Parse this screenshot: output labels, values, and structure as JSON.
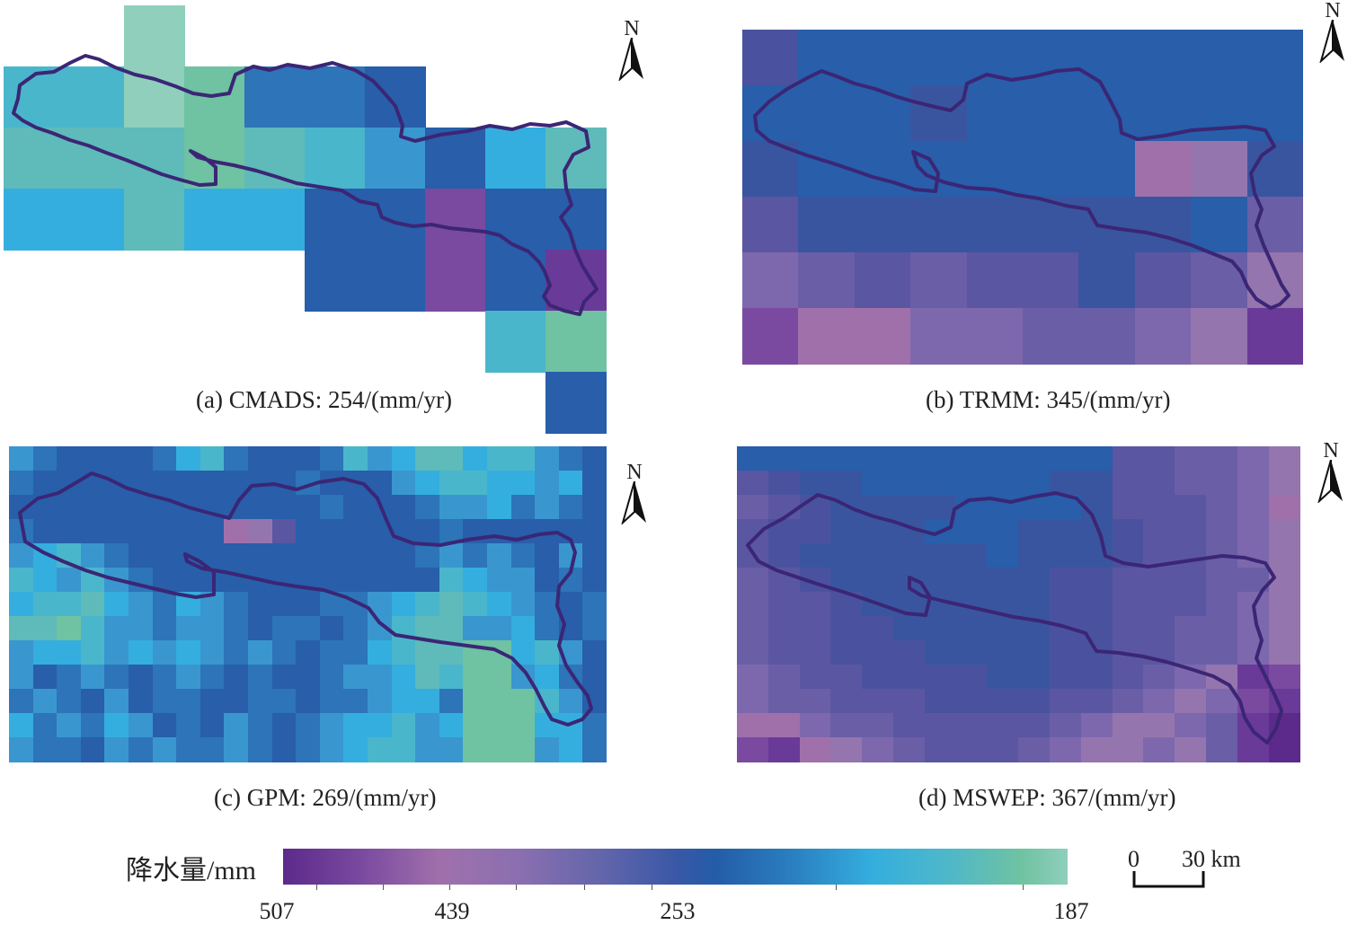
{
  "panels": [
    {
      "id": "a",
      "caption": "(a) CMADS: 254/(mm/yr)",
      "north": "N"
    },
    {
      "id": "b",
      "caption": "(b) TRMM: 345/(mm/yr)",
      "north": "N"
    },
    {
      "id": "c",
      "caption": "(c) GPM: 269/(mm/yr)",
      "north": "N"
    },
    {
      "id": "d",
      "caption": "(d) MSWEP: 367/(mm/yr)",
      "north": "N"
    }
  ],
  "legend": {
    "title": "降水量/mm",
    "tick_labels": [
      "507",
      "439",
      "253",
      "187"
    ]
  },
  "scale_bar": {
    "zero": "0",
    "value": "30 km"
  },
  "colors": {
    "basin_outline": "#3b2675",
    "ramp_low": "#8fcfbc",
    "ramp_mid": "#245ca8",
    "ramp_high": "#5c2a8a"
  }
}
